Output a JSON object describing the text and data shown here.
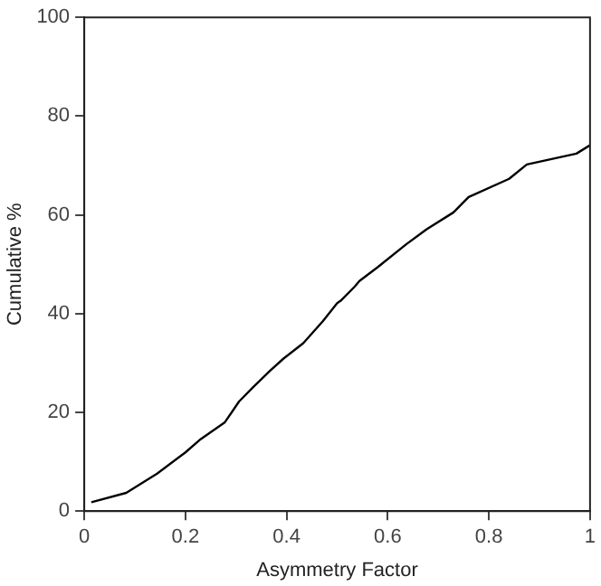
{
  "chart_data": {
    "type": "line",
    "xlabel": "Asymmetry Factor",
    "ylabel": "Cumulative %",
    "x": [
      0.014,
      0.083,
      0.144,
      0.2,
      0.228,
      0.278,
      0.306,
      0.333,
      0.367,
      0.394,
      0.433,
      0.472,
      0.5,
      0.507,
      0.535,
      0.544,
      0.58,
      0.636,
      0.677,
      0.73,
      0.76,
      0.84,
      0.875,
      0.973,
      1.0
    ],
    "series": [
      {
        "color": "#000000",
        "values": [
          1.8,
          3.7,
          7.6,
          11.9,
          14.4,
          18,
          22.2,
          25,
          28.4,
          30.9,
          34,
          38.5,
          42.1,
          42.6,
          45.5,
          46.6,
          49.4,
          54,
          57.1,
          60.5,
          63.6,
          67.3,
          70.2,
          72.4,
          74.1
        ]
      }
    ],
    "xlim": [
      0,
      1
    ],
    "xticks": [
      0,
      0.2,
      0.4,
      0.6,
      0.8,
      1
    ],
    "ylim": [
      0,
      100
    ],
    "yticks": [
      0,
      20,
      40,
      60,
      80,
      100
    ],
    "grid": false,
    "legend": false,
    "marker": "none",
    "line_style": "solid"
  }
}
